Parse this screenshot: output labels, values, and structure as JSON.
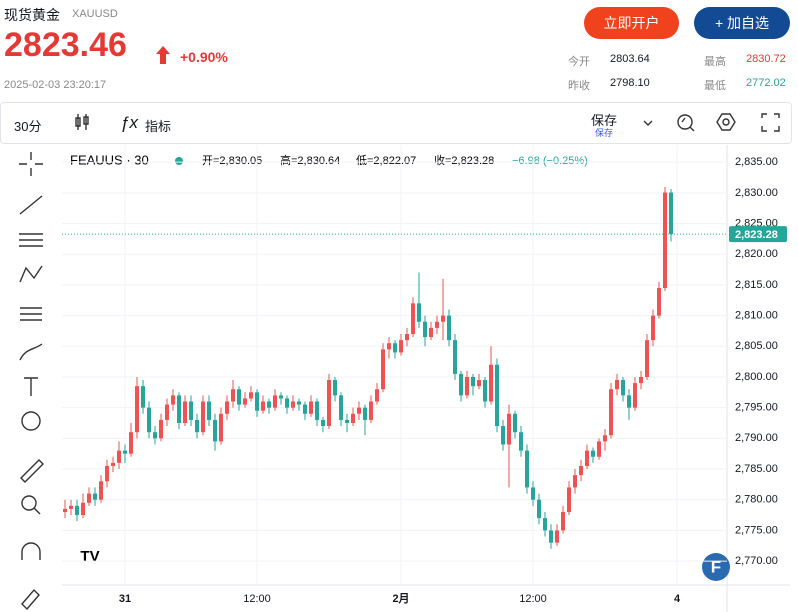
{
  "header": {
    "title": "现货黄金",
    "symbol": "XAUUSD",
    "price": "2823.46",
    "change": "+0.90%",
    "time": "2025-02-03 23:20:17",
    "buttons": [
      "立即开户",
      "+ 加自选"
    ],
    "stats": [
      {
        "label": "今开",
        "value": "2803.64"
      },
      {
        "label": "最高",
        "value": "2830.72"
      },
      {
        "label": "昨收",
        "value": "2798.10"
      },
      {
        "label": "最低",
        "value": "2772.02"
      }
    ]
  },
  "toolbar": {
    "interval": "30分",
    "indicators": "指标",
    "save": "保存",
    "save_sub": "保存"
  },
  "chart_data": {
    "type": "candlestick",
    "symbol": "FEAUUS · 30",
    "legend": {
      "open": "开=2,830.05",
      "high": "高=2,830.64",
      "low": "低=2,822.07",
      "close": "收=2,823.28",
      "change": "−6.98 (−0.25%)"
    },
    "up_color": "#ef5350",
    "down_color": "#26a69a",
    "last_label": "2,823.28",
    "ylim": [
      2766.1,
      2837.8
    ],
    "yticks": [
      {
        "value": 2770,
        "label": "2,770.00"
      },
      {
        "value": 2775,
        "label": "2,775.00"
      },
      {
        "value": 2780,
        "label": "2,780.00"
      },
      {
        "value": 2785,
        "label": "2,785.00"
      },
      {
        "value": 2790,
        "label": "2,790.00"
      },
      {
        "value": 2795,
        "label": "2,795.00"
      },
      {
        "value": 2800,
        "label": "2,800.00"
      },
      {
        "value": 2805,
        "label": "2,805.00"
      },
      {
        "value": 2810,
        "label": "2,810.00"
      },
      {
        "value": 2815,
        "label": "2,815.00"
      },
      {
        "value": 2820,
        "label": "2,820.00"
      },
      {
        "value": 2825,
        "label": "2,825.00"
      },
      {
        "value": 2830,
        "label": "2,830.00"
      },
      {
        "value": 2835,
        "label": "2,835.00"
      }
    ],
    "x_labels": [
      {
        "index": 10,
        "label": "31"
      },
      {
        "index": 32,
        "label": "12:00"
      },
      {
        "index": 56,
        "label": "2月"
      },
      {
        "index": 78,
        "label": "12:00"
      },
      {
        "index": 102,
        "label": "4"
      }
    ],
    "ohlc": [
      [
        2778,
        2780,
        2777,
        2778.5
      ],
      [
        2778.5,
        2780,
        2777.5,
        2779
      ],
      [
        2779,
        2780,
        2776.5,
        2777.5
      ],
      [
        2777.5,
        2781,
        2777,
        2779.5
      ],
      [
        2779.5,
        2782,
        2779,
        2781
      ],
      [
        2781,
        2782,
        2779,
        2780
      ],
      [
        2780,
        2784,
        2779.5,
        2783
      ],
      [
        2783,
        2786.5,
        2782,
        2785.5
      ],
      [
        2785.5,
        2787,
        2784.5,
        2786
      ],
      [
        2786,
        2789.5,
        2785,
        2788
      ],
      [
        2788,
        2789,
        2786,
        2787.5
      ],
      [
        2787.5,
        2792.5,
        2787,
        2791
      ],
      [
        2791,
        2800,
        2790,
        2798.5
      ],
      [
        2798.5,
        2799.5,
        2794,
        2795
      ],
      [
        2795,
        2796,
        2790,
        2791
      ],
      [
        2791,
        2792,
        2789,
        2790
      ],
      [
        2790,
        2794,
        2789.5,
        2793
      ],
      [
        2793,
        2796.5,
        2792,
        2795.5
      ],
      [
        2795.5,
        2798,
        2794.5,
        2797
      ],
      [
        2797,
        2797.5,
        2791.5,
        2792.5
      ],
      [
        2792.5,
        2797,
        2792,
        2796
      ],
      [
        2796,
        2797,
        2792,
        2793
      ],
      [
        2793,
        2794,
        2790,
        2791
      ],
      [
        2791,
        2797,
        2790.5,
        2796
      ],
      [
        2796,
        2797,
        2792,
        2793
      ],
      [
        2793,
        2794,
        2788,
        2789.5
      ],
      [
        2789.5,
        2795,
        2789,
        2794
      ],
      [
        2794,
        2797,
        2793,
        2796
      ],
      [
        2796,
        2799.5,
        2795,
        2798
      ],
      [
        2798,
        2798.5,
        2794.5,
        2795.5
      ],
      [
        2795.5,
        2797.5,
        2795,
        2796.5
      ],
      [
        2796.5,
        2798.5,
        2796,
        2797.5
      ],
      [
        2797.5,
        2798,
        2793.5,
        2794.5
      ],
      [
        2794.5,
        2797,
        2794,
        2796
      ],
      [
        2796,
        2796.5,
        2794,
        2795
      ],
      [
        2795,
        2798,
        2794.5,
        2797
      ],
      [
        2797,
        2797.5,
        2795.5,
        2796.5
      ],
      [
        2796.5,
        2797,
        2794,
        2795
      ],
      [
        2795,
        2797,
        2794.5,
        2796
      ],
      [
        2796,
        2796.5,
        2794.5,
        2795.5
      ],
      [
        2795.5,
        2796,
        2793,
        2794
      ],
      [
        2794,
        2797,
        2793.5,
        2796
      ],
      [
        2796,
        2796.5,
        2792,
        2793
      ],
      [
        2793,
        2793.5,
        2791,
        2792
      ],
      [
        2792,
        2800.5,
        2791.5,
        2799.5
      ],
      [
        2799.5,
        2800,
        2796,
        2797
      ],
      [
        2797,
        2797.5,
        2792,
        2793
      ],
      [
        2793,
        2794,
        2791,
        2792.5
      ],
      [
        2792.5,
        2795,
        2792,
        2794
      ],
      [
        2794,
        2796,
        2793,
        2795
      ],
      [
        2795,
        2795.5,
        2790.5,
        2793
      ],
      [
        2793,
        2797,
        2792.5,
        2796
      ],
      [
        2796,
        2799,
        2795.5,
        2798
      ],
      [
        2798,
        2805.5,
        2797.5,
        2804.5
      ],
      [
        2804.5,
        2806.5,
        2803,
        2805.5
      ],
      [
        2805.5,
        2806,
        2803,
        2804
      ],
      [
        2804,
        2807,
        2803.5,
        2806
      ],
      [
        2806,
        2808,
        2805,
        2807
      ],
      [
        2807,
        2813,
        2806.5,
        2812
      ],
      [
        2812,
        2817,
        2808,
        2809
      ],
      [
        2809,
        2810,
        2805,
        2806.5
      ],
      [
        2806.5,
        2809,
        2806,
        2808
      ],
      [
        2808,
        2810,
        2807,
        2809
      ],
      [
        2809,
        2816,
        2806,
        2810
      ],
      [
        2810,
        2811,
        2805,
        2806
      ],
      [
        2806,
        2807,
        2799.5,
        2800.5
      ],
      [
        2800.5,
        2801,
        2796,
        2797
      ],
      [
        2797,
        2801,
        2796.5,
        2800
      ],
      [
        2800,
        2800.5,
        2797,
        2798.5
      ],
      [
        2798.5,
        2800.5,
        2798,
        2799.5
      ],
      [
        2799.5,
        2800,
        2795,
        2796
      ],
      [
        2796,
        2805,
        2795.5,
        2802
      ],
      [
        2802,
        2803,
        2791,
        2792
      ],
      [
        2792,
        2793,
        2788,
        2789
      ],
      [
        2789,
        2795.5,
        2782,
        2794
      ],
      [
        2794,
        2794.5,
        2790,
        2791
      ],
      [
        2791,
        2792,
        2787,
        2788
      ],
      [
        2788,
        2789,
        2781,
        2782
      ],
      [
        2782,
        2783,
        2779,
        2780
      ],
      [
        2780,
        2781,
        2776,
        2777
      ],
      [
        2777,
        2778,
        2774,
        2775
      ],
      [
        2775,
        2776,
        2772,
        2773
      ],
      [
        2773,
        2776,
        2772.5,
        2775
      ],
      [
        2775,
        2779,
        2774.5,
        2778
      ],
      [
        2778,
        2783,
        2777.5,
        2782
      ],
      [
        2782,
        2785,
        2781,
        2784
      ],
      [
        2784,
        2786.5,
        2783,
        2785.5
      ],
      [
        2785.5,
        2789,
        2785,
        2788
      ],
      [
        2788,
        2788.5,
        2786,
        2787
      ],
      [
        2787,
        2790,
        2786.5,
        2789.5
      ],
      [
        2789.5,
        2791.5,
        2788,
        2790.5
      ],
      [
        2790.5,
        2799,
        2790,
        2798
      ],
      [
        2798,
        2800.5,
        2797,
        2799.5
      ],
      [
        2799.5,
        2800,
        2796,
        2797
      ],
      [
        2797,
        2798,
        2793,
        2795
      ],
      [
        2795,
        2800,
        2794.5,
        2799
      ],
      [
        2799,
        2801,
        2798,
        2800
      ],
      [
        2800,
        2807,
        2799.5,
        2806
      ],
      [
        2806,
        2811,
        2805,
        2810
      ],
      [
        2810,
        2815.5,
        2809.5,
        2814.5
      ],
      [
        2814.5,
        2831,
        2814,
        2830.05
      ],
      [
        2830.05,
        2830.64,
        2822.07,
        2823.28
      ]
    ]
  }
}
